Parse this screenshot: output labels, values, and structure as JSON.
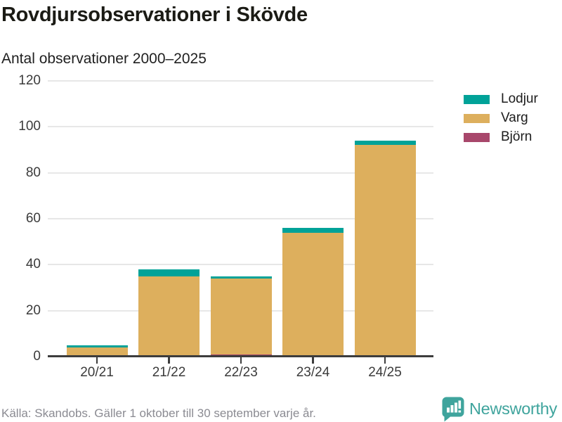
{
  "header": {
    "title": "Rovdjursobservationer i Skövde",
    "subtitle": "Antal observationer 2000–2025"
  },
  "chart_data": {
    "type": "bar",
    "stacked": true,
    "title": "Rovdjursobservationer i Skövde",
    "subtitle": "Antal observationer 2000–2025",
    "categories": [
      "20/21",
      "21/22",
      "22/23",
      "23/24",
      "24/25"
    ],
    "series": [
      {
        "name": "Björn",
        "color": "#a8476b",
        "values": [
          0,
          0,
          1,
          0,
          0
        ]
      },
      {
        "name": "Varg",
        "color": "#ddaf5d",
        "values": [
          4,
          35,
          33,
          54,
          92
        ]
      },
      {
        "name": "Lodjur",
        "color": "#00a298",
        "values": [
          1,
          3,
          1,
          2,
          2
        ]
      }
    ],
    "totals": [
      5,
      38,
      35,
      56,
      94
    ],
    "ylim": [
      0,
      120
    ],
    "yticks": [
      0,
      20,
      40,
      60,
      80,
      100,
      120
    ],
    "grid": true,
    "legend": {
      "position": "right",
      "order": [
        "Lodjur",
        "Varg",
        "Björn"
      ]
    }
  },
  "footer": {
    "source": "Källa: Skandobs. Gäller 1 oktober till 30 september varje år.",
    "brand": "Newsworthy",
    "brand_color": "#3fa49d",
    "logo_icon": "bar-chart-speech-bubble-icon"
  }
}
